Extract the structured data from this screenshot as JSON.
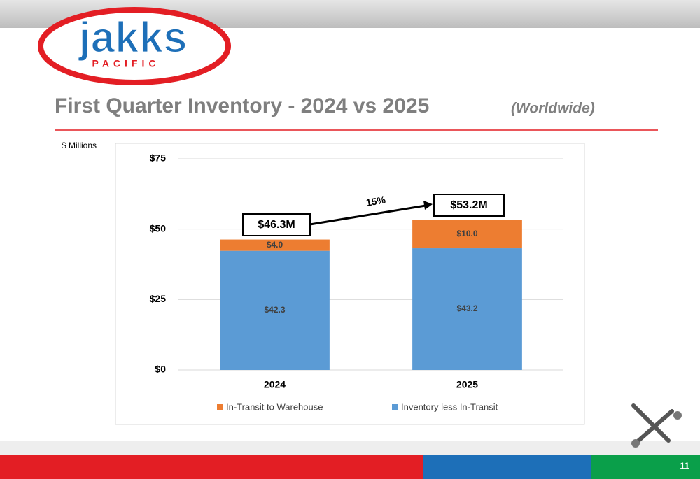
{
  "logo": {
    "name": "jakks",
    "subname": "PACIFIC"
  },
  "page_number": "11",
  "chart_data": {
    "type": "stacked_bar",
    "title": "First Quarter Inventory - 2024 vs 2025",
    "subtitle": "(Worldwide)",
    "y_axis_label": "$ Millions",
    "categories": [
      "2024",
      "2025"
    ],
    "series": [
      {
        "name": "In-Transit to Warehouse",
        "color": "#ed7d31",
        "values": [
          4.0,
          10.0
        ],
        "value_labels": [
          "$4.0",
          "$10.0"
        ]
      },
      {
        "name": "Inventory less In-Transit",
        "color": "#5b9bd5",
        "values": [
          42.3,
          43.2
        ],
        "value_labels": [
          "$42.3",
          "$43.2"
        ]
      }
    ],
    "ylim": [
      0,
      75
    ],
    "yticks": [
      {
        "value": 0,
        "label": "$0"
      },
      {
        "value": 25,
        "label": "$25"
      },
      {
        "value": 50,
        "label": "$50"
      },
      {
        "value": 75,
        "label": "$75"
      }
    ],
    "grid": true,
    "legend": "bottom",
    "annotations": [
      "$46.3M",
      "$53.2M",
      "15%"
    ]
  }
}
